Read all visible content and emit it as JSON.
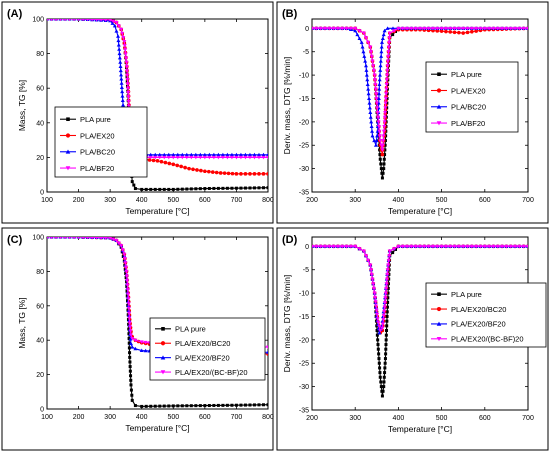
{
  "chart_data": [
    {
      "panel": "(A)",
      "type": "line",
      "xlabel": "Temperature [°C]",
      "ylabel": "Mass, TG [%]",
      "xlim": [
        100,
        800
      ],
      "ylim": [
        0,
        100
      ],
      "xticks": [
        100,
        200,
        300,
        400,
        500,
        600,
        700,
        800
      ],
      "yticks": [
        0,
        20,
        40,
        60,
        80,
        100
      ],
      "grid": false,
      "legend_position": "center-right",
      "series": [
        {
          "name": "PLA pure",
          "color": "#000000",
          "marker": "square",
          "x": [
            100,
            200,
            300,
            320,
            335,
            345,
            352,
            358,
            362,
            366,
            370,
            380,
            400,
            500,
            600,
            700,
            800
          ],
          "y": [
            100,
            100,
            99.5,
            98,
            94,
            86,
            72,
            50,
            30,
            15,
            6,
            2,
            1.5,
            1.5,
            2,
            2.2,
            2.5
          ]
        },
        {
          "name": "PLA/EX20",
          "color": "#ff0000",
          "marker": "circle",
          "x": [
            100,
            200,
            300,
            320,
            335,
            345,
            352,
            358,
            362,
            366,
            370,
            380,
            400,
            450,
            500,
            550,
            600,
            650,
            700,
            800
          ],
          "y": [
            100,
            100,
            99.5,
            98,
            94,
            86,
            75,
            58,
            40,
            26,
            21,
            19.5,
            19,
            18,
            16,
            13.5,
            12,
            11,
            10.5,
            10.5
          ]
        },
        {
          "name": "PLA/BC20",
          "color": "#0000ff",
          "marker": "triangle-up",
          "x": [
            100,
            200,
            300,
            315,
            325,
            332,
            338,
            345,
            352,
            360,
            370,
            380,
            400,
            500,
            600,
            700,
            800
          ],
          "y": [
            100,
            100,
            99,
            96,
            90,
            75,
            58,
            40,
            27,
            23,
            22,
            22,
            21.5,
            21.5,
            21.5,
            21.5,
            21.5
          ]
        },
        {
          "name": "PLA/BF20",
          "color": "#ff00ff",
          "marker": "triangle-down",
          "x": [
            100,
            200,
            300,
            320,
            335,
            345,
            352,
            358,
            362,
            366,
            370,
            380,
            400,
            500,
            600,
            700,
            800
          ],
          "y": [
            100,
            100,
            99.5,
            98,
            94,
            87,
            75,
            55,
            36,
            24,
            21,
            20,
            20,
            20,
            20,
            20,
            20
          ]
        }
      ]
    },
    {
      "panel": "(B)",
      "type": "line",
      "xlabel": "Temperature [°C]",
      "ylabel": "Deriv. mass, DTG [%/min]",
      "xlim": [
        200,
        700
      ],
      "ylim": [
        -35,
        2
      ],
      "xticks": [
        200,
        300,
        400,
        500,
        600,
        700
      ],
      "yticks": [
        0,
        -5,
        -10,
        -15,
        -20,
        -25,
        -30,
        -35
      ],
      "grid": false,
      "legend_position": "center-right",
      "series": [
        {
          "name": "PLA pure",
          "color": "#000000",
          "marker": "square",
          "x": [
            200,
            300,
            320,
            335,
            345,
            352,
            358,
            363,
            366,
            370,
            375,
            380,
            400,
            500,
            600,
            700
          ],
          "y": [
            0,
            0,
            -1,
            -4,
            -10,
            -20,
            -28,
            -32,
            -30,
            -24,
            -12,
            -2,
            0,
            0,
            0,
            0
          ]
        },
        {
          "name": "PLA/EX20",
          "color": "#ff0000",
          "marker": "circle",
          "x": [
            200,
            300,
            320,
            335,
            345,
            352,
            358,
            363,
            368,
            375,
            380,
            400,
            450,
            500,
            550,
            600,
            700
          ],
          "y": [
            0,
            0,
            -1,
            -4,
            -10,
            -18,
            -25,
            -27,
            -22,
            -8,
            -1,
            -0.3,
            -0.3,
            -0.6,
            -1,
            -0.3,
            0
          ]
        },
        {
          "name": "PLA/BC20",
          "color": "#0000ff",
          "marker": "triangle-up",
          "x": [
            200,
            280,
            300,
            315,
            325,
            332,
            340,
            348,
            352,
            356,
            362,
            368,
            375,
            400,
            500,
            600,
            700
          ],
          "y": [
            0,
            0,
            -0.5,
            -3,
            -8,
            -15,
            -23,
            -25,
            -22,
            -12,
            -3,
            -0.5,
            0,
            0,
            0,
            0,
            0
          ]
        },
        {
          "name": "PLA/BF20",
          "color": "#ff00ff",
          "marker": "triangle-down",
          "x": [
            200,
            300,
            320,
            335,
            345,
            352,
            358,
            363,
            368,
            375,
            380,
            400,
            500,
            600,
            700
          ],
          "y": [
            0,
            0,
            -1,
            -4,
            -10,
            -18,
            -24,
            -26,
            -20,
            -8,
            -1,
            0,
            0,
            0,
            0
          ]
        }
      ]
    },
    {
      "panel": "(C)",
      "type": "line",
      "xlabel": "Temperature [°C]",
      "ylabel": "Mass, TG [%]",
      "xlim": [
        100,
        800
      ],
      "ylim": [
        0,
        100
      ],
      "xticks": [
        100,
        200,
        300,
        400,
        500,
        600,
        700,
        800
      ],
      "yticks": [
        0,
        20,
        40,
        60,
        80,
        100
      ],
      "grid": false,
      "legend_position": "center-right",
      "series": [
        {
          "name": "PLA pure",
          "color": "#000000",
          "marker": "square",
          "x": [
            100,
            200,
            300,
            320,
            335,
            345,
            352,
            358,
            362,
            366,
            370,
            380,
            400,
            500,
            600,
            700,
            800
          ],
          "y": [
            100,
            100,
            99.5,
            98,
            94,
            86,
            74,
            52,
            30,
            14,
            5,
            2,
            1.5,
            1.8,
            2,
            2.2,
            2.5
          ]
        },
        {
          "name": "PLA/EX20/BC20",
          "color": "#ff0000",
          "marker": "circle",
          "x": [
            100,
            200,
            300,
            320,
            335,
            345,
            352,
            358,
            362,
            366,
            370,
            380,
            400,
            450,
            500,
            600,
            700,
            800
          ],
          "y": [
            100,
            100,
            99.5,
            98,
            95,
            90,
            80,
            65,
            52,
            45,
            42,
            40,
            38.5,
            37,
            35.5,
            34,
            33,
            32
          ]
        },
        {
          "name": "PLA/EX20/BF20",
          "color": "#0000ff",
          "marker": "triangle-up",
          "x": [
            100,
            200,
            300,
            320,
            335,
            345,
            352,
            358,
            362,
            366,
            370,
            380,
            400,
            450,
            500,
            600,
            700,
            800
          ],
          "y": [
            100,
            100,
            99.5,
            98,
            95,
            89,
            78,
            60,
            46,
            38,
            36,
            35,
            34,
            33.5,
            33,
            33,
            33,
            33
          ]
        },
        {
          "name": "PLA/EX20/(BC-BF)20",
          "color": "#ff00ff",
          "marker": "triangle-down",
          "x": [
            100,
            200,
            300,
            320,
            335,
            345,
            352,
            358,
            362,
            366,
            370,
            380,
            400,
            450,
            500,
            600,
            700,
            800
          ],
          "y": [
            100,
            100,
            99.5,
            98,
            95,
            90,
            80,
            64,
            50,
            43,
            41,
            40,
            39,
            38,
            37.5,
            36.5,
            36,
            36
          ]
        }
      ]
    },
    {
      "panel": "(D)",
      "type": "line",
      "xlabel": "Temperature [°C]",
      "ylabel": "Deriv. mass, DTG [%/min]",
      "xlim": [
        200,
        700
      ],
      "ylim": [
        -35,
        2
      ],
      "xticks": [
        200,
        300,
        400,
        500,
        600,
        700
      ],
      "yticks": [
        0,
        -5,
        -10,
        -15,
        -20,
        -25,
        -30,
        -35
      ],
      "grid": false,
      "legend_position": "center-right",
      "series": [
        {
          "name": "PLA pure",
          "color": "#000000",
          "marker": "square",
          "x": [
            200,
            300,
            320,
            335,
            345,
            352,
            358,
            363,
            366,
            370,
            375,
            380,
            400,
            500,
            600,
            700
          ],
          "y": [
            0,
            0,
            -1,
            -4,
            -10,
            -20,
            -28,
            -32,
            -30,
            -24,
            -12,
            -2,
            0,
            0,
            0,
            0
          ]
        },
        {
          "name": "PLA/EX20/BC20",
          "color": "#ff0000",
          "marker": "circle",
          "x": [
            200,
            300,
            320,
            335,
            345,
            352,
            358,
            363,
            368,
            375,
            380,
            400,
            500,
            600,
            700
          ],
          "y": [
            0,
            0,
            -1,
            -4,
            -10,
            -16,
            -18.5,
            -18,
            -14,
            -6,
            -1,
            0,
            0,
            0,
            0
          ]
        },
        {
          "name": "PLA/EX20/BF20",
          "color": "#0000ff",
          "marker": "triangle-up",
          "x": [
            200,
            300,
            320,
            335,
            345,
            350,
            356,
            362,
            368,
            375,
            380,
            400,
            500,
            600,
            700
          ],
          "y": [
            0,
            0,
            -1,
            -4,
            -10,
            -15,
            -18.5,
            -17,
            -12,
            -5,
            -1,
            0,
            0,
            0,
            0
          ]
        },
        {
          "name": "PLA/EX20/(BC-BF)20",
          "color": "#ff00ff",
          "marker": "triangle-down",
          "x": [
            200,
            300,
            320,
            335,
            345,
            352,
            358,
            363,
            368,
            375,
            380,
            400,
            500,
            600,
            700
          ],
          "y": [
            0,
            0,
            -1,
            -4,
            -10,
            -15.5,
            -18,
            -17.5,
            -13,
            -5,
            -1,
            0,
            0,
            0,
            0
          ]
        }
      ]
    }
  ]
}
